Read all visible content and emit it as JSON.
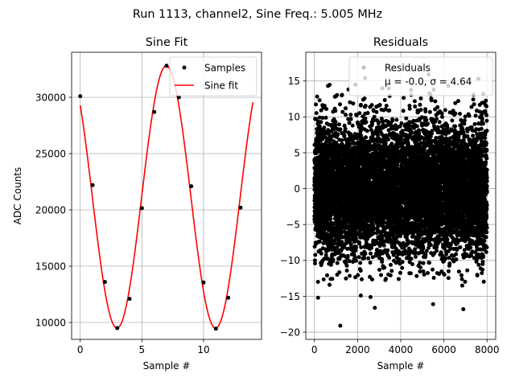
{
  "figure": {
    "suptitle": "Run 1113, channel2, Sine Freq.: 5.005 MHz"
  },
  "chart_data": [
    {
      "type": "scatter",
      "title": "Sine Fit",
      "xlabel": "Sample #",
      "ylabel": "ADC Counts",
      "xlim": [
        -0.7,
        14.7
      ],
      "ylim": [
        8500,
        34000
      ],
      "xticks": [
        0,
        5,
        10
      ],
      "yticks": [
        10000,
        15000,
        20000,
        25000,
        30000
      ],
      "grid": true,
      "legend_position": "top-right",
      "series": [
        {
          "name": "Samples",
          "kind": "points",
          "color": "#000000",
          "x": [
            0,
            1,
            2,
            3,
            4,
            5,
            6,
            7,
            8,
            9,
            10,
            11,
            12,
            13
          ],
          "y": [
            30100,
            22200,
            13600,
            9500,
            12100,
            20150,
            28700,
            32800,
            30000,
            22100,
            13550,
            9450,
            12200,
            20200
          ]
        },
        {
          "name": "Sine fit",
          "kind": "line",
          "color": "#ff0000",
          "model": {
            "offset": 21150,
            "amplitude": 11650,
            "period": 7.995,
            "phase": 2.37,
            "x_start": 0,
            "x_end": 14
          }
        }
      ]
    },
    {
      "type": "scatter",
      "title": "Residuals",
      "xlabel": "Sample #",
      "ylabel": "",
      "xlim": [
        -400,
        8400
      ],
      "ylim": [
        -21,
        19
      ],
      "xticks": [
        0,
        2000,
        4000,
        6000,
        8000
      ],
      "yticks": [
        -20,
        -15,
        -10,
        -5,
        0,
        5,
        10,
        15
      ],
      "grid": true,
      "legend_position": "top-right",
      "series": [
        {
          "name": "Residuals",
          "kind": "points",
          "color": "#000000",
          "n_points": 8000,
          "x_range": [
            0,
            8000
          ],
          "mean": -0.0,
          "std": 4.64,
          "outliers": [
            {
              "x": 1200,
              "y": -19.1
            },
            {
              "x": 6900,
              "y": -16.8
            },
            {
              "x": 5500,
              "y": -16.1
            },
            {
              "x": 2800,
              "y": -16.6
            },
            {
              "x": 170,
              "y": -15.2
            },
            {
              "x": 2600,
              "y": -15.1
            },
            {
              "x": 2150,
              "y": -14.9
            },
            {
              "x": 2350,
              "y": 15.4
            },
            {
              "x": 5300,
              "y": 15.9
            },
            {
              "x": 7600,
              "y": 15.3
            },
            {
              "x": 6850,
              "y": -13.5
            },
            {
              "x": 700,
              "y": -13.4
            }
          ]
        }
      ],
      "legend_lines": [
        "Residuals",
        "μ = -0.0, σ = 4.64"
      ]
    }
  ]
}
